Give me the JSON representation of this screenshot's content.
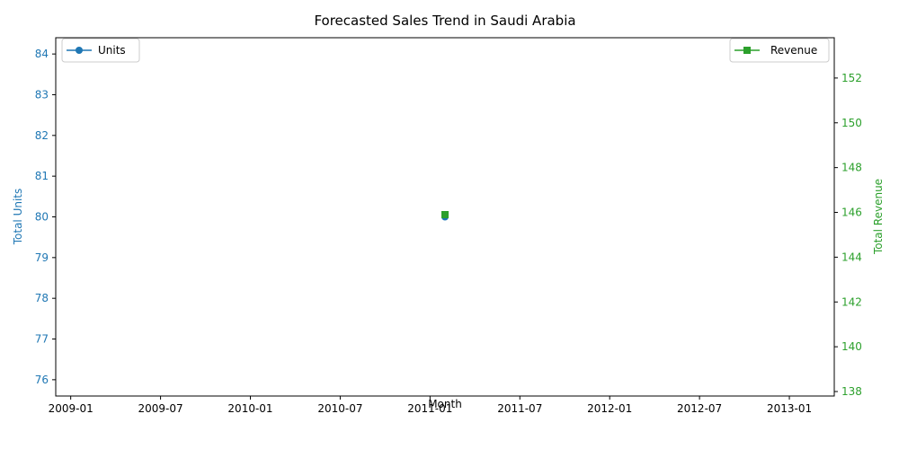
{
  "chart_data": {
    "type": "line",
    "title": "Forecasted Sales Trend in Saudi Arabia",
    "xlabel": "Month",
    "x_ticks": [
      "2009-01",
      "2009-07",
      "2010-01",
      "2010-07",
      "2011-01",
      "2011-07",
      "2012-01",
      "2012-07",
      "2013-01"
    ],
    "x_range": [
      "2008-12",
      "2013-04"
    ],
    "left_axis": {
      "label": "Total Units",
      "color": "#1f77b4",
      "ylim": [
        75.6,
        84.4
      ],
      "ticks": [
        "76",
        "77",
        "78",
        "79",
        "80",
        "81",
        "82",
        "83",
        "84"
      ]
    },
    "right_axis": {
      "label": "Total Revenue",
      "color": "#2ca02c",
      "ylim": [
        137.8,
        153.8
      ],
      "ticks": [
        "138",
        "140",
        "142",
        "144",
        "146",
        "148",
        "150",
        "152"
      ]
    },
    "series": [
      {
        "name": "Units",
        "axis": "left",
        "marker": "circle",
        "color": "#1f77b4",
        "points": [
          {
            "x": "2011-02",
            "y": 80
          }
        ]
      },
      {
        "name": "Revenue",
        "axis": "right",
        "marker": "square",
        "color": "#2ca02c",
        "points": [
          {
            "x": "2011-02",
            "y": 145.9
          }
        ]
      }
    ],
    "legends": [
      {
        "series": "Units",
        "placement": "top-left"
      },
      {
        "series": "Revenue",
        "placement": "top-right"
      }
    ]
  }
}
